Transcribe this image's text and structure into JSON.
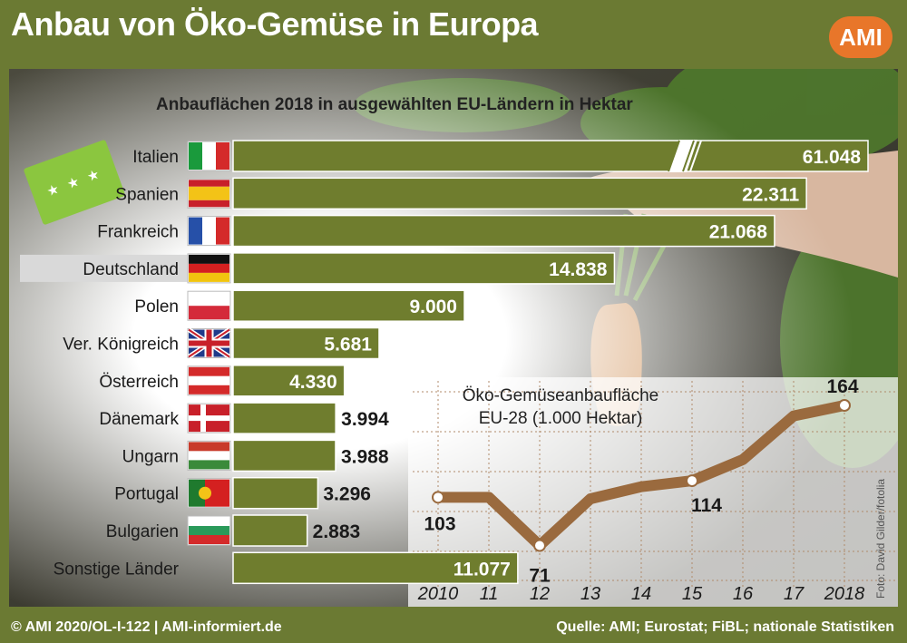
{
  "header": {
    "title": "Anbau von Öko-Gemüse in Europa",
    "logo_text": "AMI"
  },
  "footer": {
    "left": "© AMI 2020/OL-I-122 | AMI-informiert.de",
    "right": "Quelle: AMI; Eurostat; FiBL; nationale Statistiken"
  },
  "photo_credit": "Foto: David Gilder/fotolia",
  "colors": {
    "frame": "#6b7a33",
    "bar": "#6f7d2e",
    "bar_border": "#ffffff",
    "line": "#9a6a3e",
    "highlight": "#d9d9d9",
    "logo": "#e8762a"
  },
  "chart_data": [
    {
      "type": "bar",
      "orientation": "horizontal",
      "title": "Anbauflächen 2018 in ausgewählten EU-Ländern in Hektar",
      "unit": "Hektar",
      "categories": [
        "Italien",
        "Spanien",
        "Frankreich",
        "Deutschland",
        "Polen",
        "Ver. Königreich",
        "Österreich",
        "Dänemark",
        "Ungarn",
        "Portugal",
        "Bulgarien",
        "Sonstige Länder"
      ],
      "values": [
        61048,
        22311,
        21068,
        14838,
        9000,
        5681,
        4330,
        3994,
        3988,
        3296,
        2883,
        11077
      ],
      "value_labels": [
        "61.048",
        "22.311",
        "21.068",
        "14.838",
        "9.000",
        "5.681",
        "4.330",
        "3.994",
        "3.988",
        "3.296",
        "2.883",
        "11.077"
      ],
      "flags": [
        "italy-flag",
        "spain-flag",
        "france-flag",
        "germany-flag",
        "poland-flag",
        "uk-flag",
        "austria-flag",
        "denmark-flag",
        "hungary-flag",
        "portugal-flag",
        "bulgaria-flag",
        null
      ],
      "highlighted": "Deutschland",
      "broken_axis_on": "Italien"
    },
    {
      "type": "line",
      "title": "Öko-Gemüseanbaufläche EU-28 (1.000 Hektar)",
      "title_lines": [
        "Öko-Gemüseanbaufläche",
        "EU-28 (1.000 Hektar)"
      ],
      "x": [
        2010,
        2011,
        2012,
        2013,
        2014,
        2015,
        2016,
        2017,
        2018
      ],
      "x_tick_labels": [
        "2010",
        "11",
        "12",
        "13",
        "14",
        "15",
        "16",
        "17",
        "2018"
      ],
      "y": [
        103,
        103,
        71,
        102,
        110,
        114,
        128,
        157,
        164
      ],
      "labeled_points": [
        {
          "x": 2010,
          "label": "103"
        },
        {
          "x": 2012,
          "label": "71"
        },
        {
          "x": 2015,
          "label": "114"
        },
        {
          "x": 2018,
          "label": "164"
        }
      ],
      "grid": true
    }
  ]
}
